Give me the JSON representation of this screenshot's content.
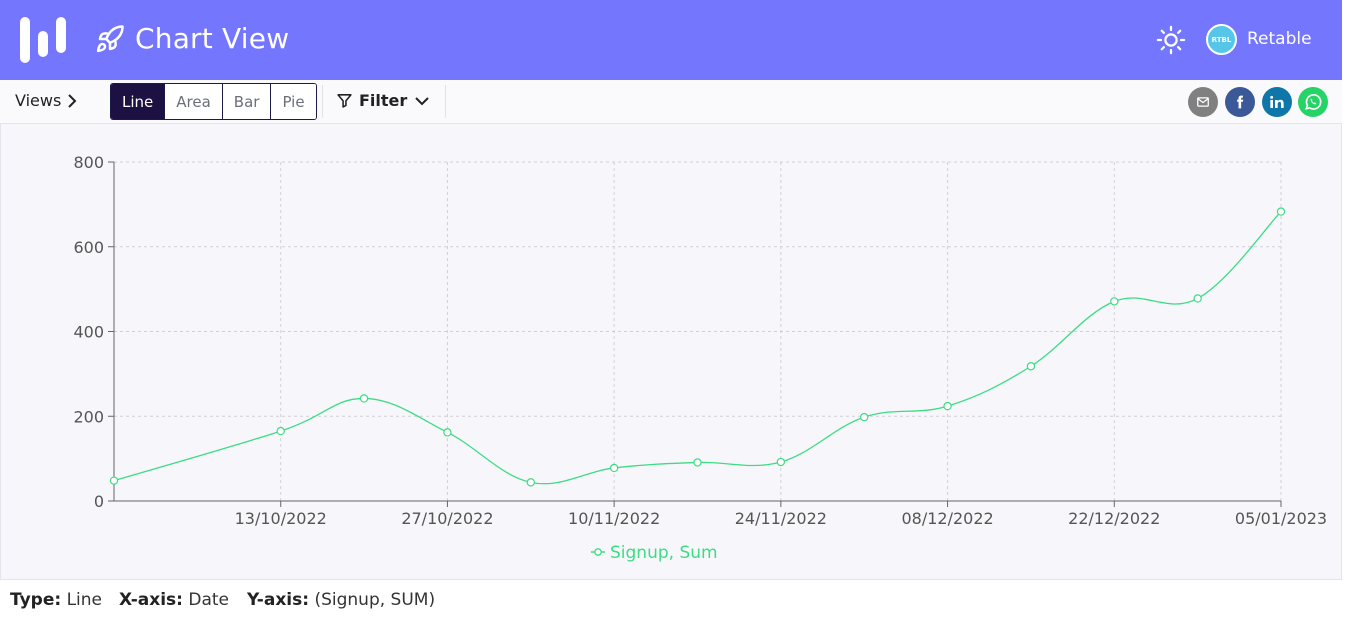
{
  "header": {
    "title": "Chart View",
    "user_initials": "RTBL",
    "user_name": "Retable",
    "icons": [
      "logo-bars-icon",
      "rocket-icon",
      "sun-icon"
    ],
    "bg_color": "#7476fd"
  },
  "toolbar": {
    "views_label": "Views",
    "view_options": [
      "Line",
      "Area",
      "Bar",
      "Pie"
    ],
    "active_view": "Line",
    "filter_label": "Filter",
    "share_icons": [
      "email-icon",
      "facebook-icon",
      "linkedin-icon",
      "whatsapp-icon"
    ],
    "share_colors": [
      "#808080",
      "#3b5998",
      "#0e76a8",
      "#25d366"
    ]
  },
  "chart_data": {
    "type": "line",
    "x": [
      "2022-09-29",
      "2022-10-13",
      "2022-10-20",
      "2022-10-27",
      "2022-11-03",
      "2022-11-10",
      "2022-11-17",
      "2022-11-24",
      "2022-12-01",
      "2022-12-08",
      "2022-12-15",
      "2022-12-22",
      "2022-12-29",
      "2023-01-05"
    ],
    "x_tick_labels": [
      "13/10/2022",
      "27/10/2022",
      "10/11/2022",
      "24/11/2022",
      "08/12/2022",
      "22/12/2022",
      "05/01/2023"
    ],
    "series": [
      {
        "name": "Signup, Sum",
        "color": "#3ddc84",
        "values": [
          48,
          165,
          242,
          162,
          44,
          78,
          91,
          92,
          198,
          224,
          318,
          471,
          478,
          683
        ]
      }
    ],
    "ylim": [
      0,
      800
    ],
    "y_ticks": [
      0,
      200,
      400,
      600,
      800
    ],
    "grid": true,
    "legend_position": "bottom-center"
  },
  "footer": {
    "type_label": "Type:",
    "type_value": "Line",
    "xaxis_label": "X-axis:",
    "xaxis_value": "Date",
    "yaxis_label": "Y-axis:",
    "yaxis_value": "(Signup, SUM)"
  }
}
